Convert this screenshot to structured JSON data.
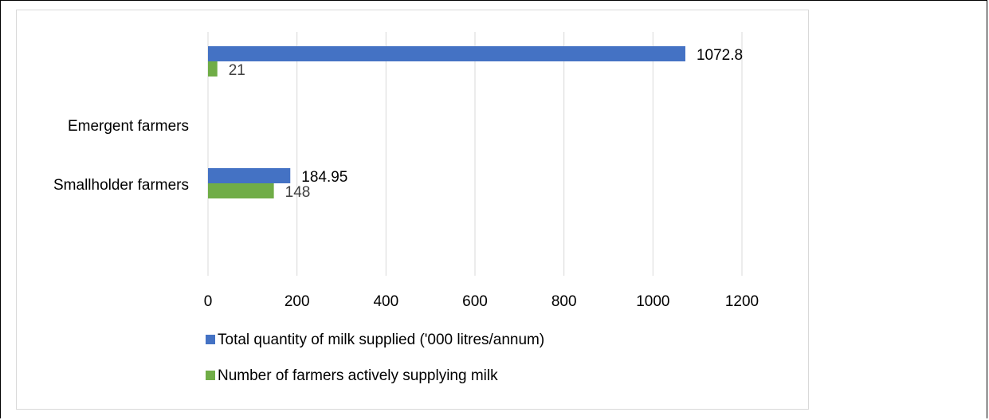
{
  "chart_data": {
    "type": "bar",
    "orientation": "horizontal",
    "categories": [
      "Smallholder farmers",
      "Emergent farmers"
    ],
    "series": [
      {
        "name": "Total quantity of milk supplied ('000 litres/annum)",
        "color": "#4472c4",
        "label_color": "#000000",
        "values": [
          184.95,
          1072.8
        ]
      },
      {
        "name": "Number of farmers actively supplying  milk",
        "color": "#70ad47",
        "label_color": "#404040",
        "values": [
          148,
          21
        ]
      }
    ],
    "xlim": [
      0,
      1200
    ],
    "xticks": [
      0,
      200,
      400,
      600,
      800,
      1000,
      1200
    ],
    "grid": "vertical",
    "legend_position": "bottom"
  }
}
